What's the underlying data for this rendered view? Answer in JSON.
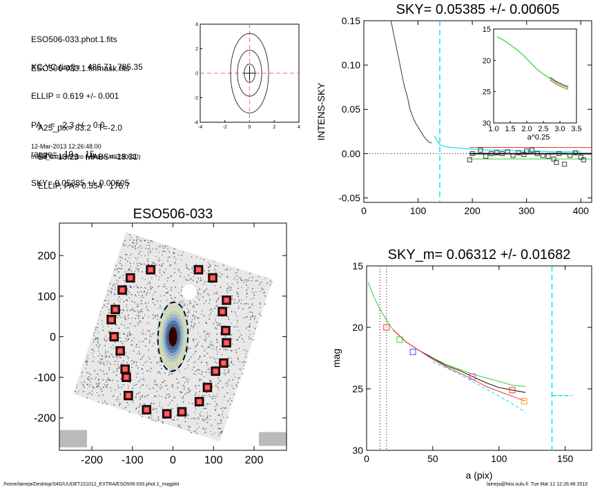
{
  "info_panel": {
    "lines_a": [
      "ESO506-033.phot.1.fits",
      "ESO506-033.1.finmask.fits"
    ],
    "lines_b": [
      "XC,YC (iraf)=   486.71, 785.35",
      "ELLIP = 0.619 +/- 0.001",
      "PA    =  -2.3 +/-   0.0",
      "range=   10.-   15.",
      "SKY= 0.05385 +/- 0.00605"
    ],
    "lines_c": [
      "A25_pix= 83.2   T=-2.0",
      "BT=  13.23   MABS=-18.31",
      "ELLIP, PA= 0.554   176.7"
    ],
    "timestamp": "12-Mar-2013 12:26:48.00",
    "program": "make_datalist0.pro (version HS230610)"
  },
  "footer": {
    "path": "/home/laineja/Desktop/S4G/UUDET221012_EXTRA/ESO506-033.phot.1_magplot",
    "user_date": "laineja@hiisi.oulu.fi  Tue Mar 12 12:26:48 2013"
  },
  "colors": {
    "axis": "#000000",
    "sky_dash": "#00e5ee",
    "red": "#ff3030",
    "green": "#30d030",
    "blue": "#3050ff",
    "magenta": "#e040e0",
    "orange": "#ff9a00",
    "cross": "#ff6060"
  },
  "chart_data": [
    {
      "id": "isophote-thumbnail",
      "type": "line",
      "xlim": [
        -4,
        4
      ],
      "ylim": [
        -4,
        4
      ],
      "xticks": [
        -4,
        -2,
        0,
        2,
        4
      ],
      "yticks": [
        -4,
        -2,
        0,
        2,
        4
      ],
      "contours": [
        {
          "a": 2.6,
          "b": 1.4
        },
        {
          "a": 1.5,
          "b": 0.9
        },
        {
          "a": 0.6,
          "b": 0.4
        }
      ],
      "crosshair": [
        0,
        0
      ]
    },
    {
      "id": "sky-profile",
      "type": "line",
      "title": "SKY= 0.05385 +/- 0.00605",
      "xlabel": "",
      "ylabel": "INTENS-SKY",
      "xlim": [
        0,
        420
      ],
      "ylim": [
        -0.055,
        0.15
      ],
      "xticks": [
        0,
        100,
        200,
        300,
        400
      ],
      "yticks": [
        -0.05,
        0.0,
        0.05,
        0.1,
        0.15
      ],
      "ytick_labels": [
        "-0.05",
        "0.00",
        "0.05",
        "0.10",
        "0.15"
      ],
      "profile": [
        [
          50,
          0.15
        ],
        [
          55,
          0.135
        ],
        [
          60,
          0.12
        ],
        [
          65,
          0.105
        ],
        [
          70,
          0.09
        ],
        [
          75,
          0.075
        ],
        [
          80,
          0.065
        ],
        [
          85,
          0.05
        ],
        [
          90,
          0.042
        ],
        [
          95,
          0.035
        ],
        [
          100,
          0.03
        ],
        [
          105,
          0.025
        ],
        [
          110,
          0.02
        ],
        [
          115,
          0.016
        ],
        [
          120,
          0.013
        ],
        [
          125,
          0.012
        ]
      ],
      "outer_profile": [
        [
          130,
          0.02
        ],
        [
          140,
          0.01
        ],
        [
          150,
          0.008
        ],
        [
          160,
          0.007
        ],
        [
          180,
          0.006
        ],
        [
          200,
          0.005
        ],
        [
          230,
          0.004
        ],
        [
          260,
          0.004
        ],
        [
          290,
          0.003
        ],
        [
          320,
          0.003
        ],
        [
          350,
          0.002
        ],
        [
          380,
          0.002
        ],
        [
          400,
          0.002
        ]
      ],
      "sky_points": [
        [
          195,
          -0.007
        ],
        [
          200,
          0.0
        ],
        [
          215,
          0.004
        ],
        [
          225,
          -0.003
        ],
        [
          235,
          0.0
        ],
        [
          245,
          0.001
        ],
        [
          255,
          0.0
        ],
        [
          265,
          0.002
        ],
        [
          275,
          -0.002
        ],
        [
          285,
          0.001
        ],
        [
          295,
          -0.001
        ],
        [
          300,
          0.003
        ],
        [
          310,
          0.004
        ],
        [
          320,
          0.0
        ],
        [
          330,
          -0.002
        ],
        [
          340,
          -0.003
        ],
        [
          350,
          -0.006
        ],
        [
          355,
          -0.01
        ],
        [
          360,
          0.0
        ],
        [
          370,
          -0.012
        ],
        [
          380,
          -0.002
        ],
        [
          390,
          0.001
        ],
        [
          400,
          -0.004
        ],
        [
          405,
          -0.007
        ]
      ],
      "sky_level_range": [
        195,
        420
      ],
      "sky_dashed_x": 140,
      "hlines": [
        0.007,
        -0.006,
        0.0
      ],
      "inset": {
        "xlabel": "a^0.25",
        "xlim": [
          1.0,
          3.5
        ],
        "ylim": [
          15,
          30
        ],
        "xticks": [
          1.0,
          1.5,
          2.0,
          2.5,
          3.0,
          3.5
        ],
        "xtick_labels": [
          "1.0",
          "1.5",
          "2.0",
          "2.5",
          "3.0",
          "3.5"
        ],
        "yticks": [
          15,
          20,
          25,
          30
        ],
        "curve": [
          [
            1.1,
            16.2
          ],
          [
            1.3,
            16.8
          ],
          [
            1.5,
            17.5
          ],
          [
            1.7,
            18.3
          ],
          [
            1.9,
            19.2
          ],
          [
            2.1,
            20.3
          ],
          [
            2.3,
            21.4
          ],
          [
            2.5,
            22.2
          ],
          [
            2.7,
            22.9
          ],
          [
            2.9,
            23.6
          ],
          [
            3.1,
            24.1
          ],
          [
            3.25,
            24.4
          ]
        ]
      }
    },
    {
      "id": "galaxy-image",
      "type": "scatter",
      "title": "ESO506-033",
      "xlim": [
        -280,
        280
      ],
      "ylim": [
        -280,
        280
      ],
      "xticks": [
        -200,
        -100,
        0,
        100,
        200
      ],
      "yticks": [
        -200,
        -100,
        0,
        100,
        200
      ],
      "ellipse": {
        "a": 85,
        "b": 37,
        "pa": 2.3
      },
      "sky_boxes": [
        [
          -55,
          165
        ],
        [
          -105,
          145
        ],
        [
          -125,
          115
        ],
        [
          -142,
          67
        ],
        [
          -152,
          42
        ],
        [
          -145,
          0
        ],
        [
          -130,
          -35
        ],
        [
          -118,
          -80
        ],
        [
          -115,
          -100
        ],
        [
          -110,
          -145
        ],
        [
          -65,
          -180
        ],
        [
          -15,
          -190
        ],
        [
          22,
          -185
        ],
        [
          65,
          -160
        ],
        [
          85,
          -125
        ],
        [
          105,
          -85
        ],
        [
          125,
          -65
        ],
        [
          132,
          -15
        ],
        [
          130,
          15
        ],
        [
          122,
          62
        ],
        [
          132,
          90
        ],
        [
          98,
          145
        ],
        [
          63,
          165
        ]
      ]
    },
    {
      "id": "magnitude-profile",
      "type": "line",
      "title": "SKY_m=  0.06312 +/- 0.01682",
      "xlabel": "a (pix)",
      "ylabel": "mag",
      "xlim": [
        0,
        170
      ],
      "ylim": [
        30,
        15
      ],
      "xticks": [
        0,
        50,
        100,
        150
      ],
      "yticks": [
        15,
        20,
        25,
        30
      ],
      "vlines_dotted": [
        10,
        15
      ],
      "sky_dashed_x": 140,
      "series": [
        {
          "color": "green",
          "values": [
            [
              1,
              16.3
            ],
            [
              5,
              17.4
            ],
            [
              10,
              18.5
            ],
            [
              15,
              19.4
            ],
            [
              20,
              20.2
            ],
            [
              30,
              21.2
            ],
            [
              40,
              21.9
            ],
            [
              50,
              22.5
            ],
            [
              60,
              23.0
            ],
            [
              70,
              23.4
            ],
            [
              80,
              23.8
            ],
            [
              90,
              24.1
            ],
            [
              100,
              24.4
            ],
            [
              110,
              24.7
            ],
            [
              120,
              24.8
            ]
          ]
        },
        {
          "color": "black",
          "values": [
            [
              20,
              20.2
            ],
            [
              30,
              21.2
            ],
            [
              40,
              21.9
            ],
            [
              50,
              22.5
            ],
            [
              60,
              23.1
            ],
            [
              70,
              23.5
            ],
            [
              80,
              24.0
            ],
            [
              90,
              24.5
            ],
            [
              100,
              24.9
            ],
            [
              110,
              25.1
            ],
            [
              120,
              25.3
            ]
          ]
        },
        {
          "color": "red",
          "values": [
            [
              20,
              20.2
            ],
            [
              30,
              21.2
            ],
            [
              40,
              21.9
            ],
            [
              50,
              22.6
            ],
            [
              60,
              23.2
            ],
            [
              70,
              23.7
            ],
            [
              80,
              24.2
            ],
            [
              90,
              24.8
            ],
            [
              100,
              25.2
            ],
            [
              110,
              25.6
            ],
            [
              120,
              26.0
            ]
          ]
        },
        {
          "color": "sky_dash",
          "values": [
            [
              50,
              22.8
            ],
            [
              60,
              23.3
            ],
            [
              70,
              23.8
            ],
            [
              80,
              24.4
            ],
            [
              90,
              25.0
            ],
            [
              100,
              25.6
            ],
            [
              110,
              26.2
            ],
            [
              120,
              26.9
            ]
          ]
        }
      ],
      "markers": [
        [
          15,
          20.0,
          "red"
        ],
        [
          25,
          21.0,
          "green"
        ],
        [
          35,
          22.0,
          "blue"
        ],
        [
          80,
          24.0,
          "magenta"
        ],
        [
          110,
          25.1,
          "red"
        ],
        [
          119,
          26.0,
          "orange"
        ]
      ],
      "sky_level": {
        "x": [
          140,
          155
        ],
        "y": 25.55
      }
    }
  ]
}
